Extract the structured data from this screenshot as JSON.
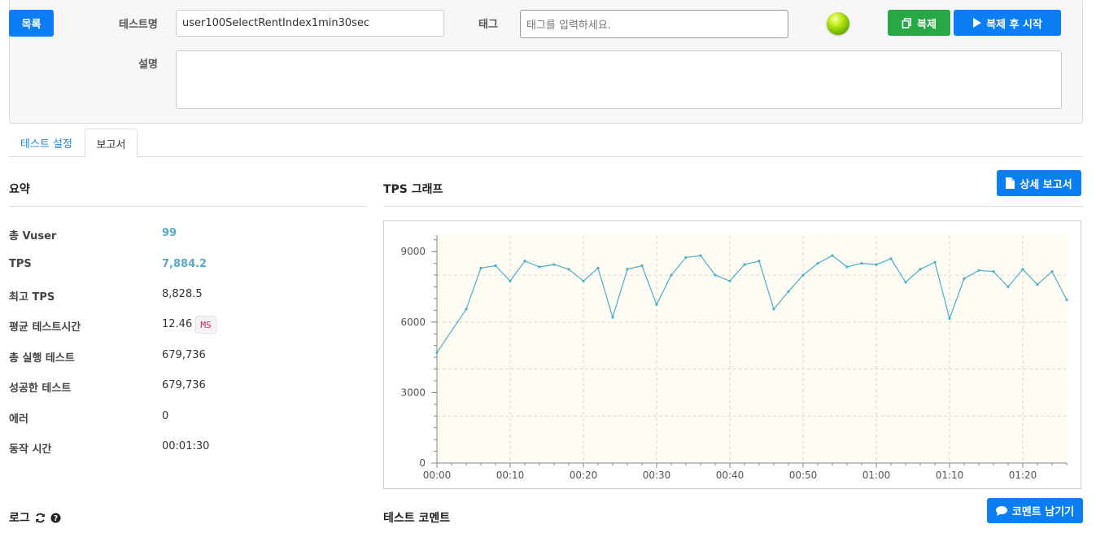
{
  "header": {
    "list_button": "목록",
    "test_name_label": "테스트명",
    "test_name_value": "user100SelectRentIndex1min30sec",
    "tag_label": "태그",
    "tag_placeholder": "태그를 입력하세요.",
    "description_label": "설명",
    "description_value": "",
    "copy_button": "복제",
    "copy_start_button": "복제 후 시작",
    "status_color": "#8ccf00"
  },
  "tabs": [
    {
      "label": "테스트 설정",
      "active": false
    },
    {
      "label": "보고서",
      "active": true
    }
  ],
  "summary": {
    "title": "요약",
    "rows": [
      {
        "label": "총 Vuser",
        "value": "99",
        "accent": true
      },
      {
        "label": "TPS",
        "value": "7,884.2",
        "accent": true
      },
      {
        "label": "최고 TPS",
        "value": "8,828.5"
      },
      {
        "label": "평균 테스트시간",
        "value": "12.46",
        "unit": "MS"
      },
      {
        "label": "총 실행 테스트",
        "value": "679,736"
      },
      {
        "label": "성공한 테스트",
        "value": "679,736"
      },
      {
        "label": "에러",
        "value": "0"
      },
      {
        "label": "동작 시간",
        "value": "00:01:30"
      }
    ]
  },
  "graph_section": {
    "title": "TPS 그래프",
    "detail_button": "상세 보고서",
    "line_color": "#4aafc9",
    "plot_bg": "#fffcf4"
  },
  "log_section": {
    "title": "로그"
  },
  "comment_section": {
    "title": "테스트 코멘트",
    "button": "코멘트 남기기"
  },
  "chart_data": {
    "type": "line",
    "x_unit": "seconds",
    "x_tick_labels": [
      "00:00",
      "00:10",
      "00:20",
      "00:30",
      "00:40",
      "00:50",
      "01:00",
      "01:10",
      "01:20"
    ],
    "y_tick_labels": [
      "0",
      "3000",
      "6000",
      "9000"
    ],
    "xlim": [
      0,
      86
    ],
    "ylim": [
      0,
      9700
    ],
    "grid": true,
    "series": [
      {
        "x": [
          0,
          4,
          6,
          8,
          10,
          12,
          14,
          16,
          18,
          20,
          22,
          24,
          26,
          28,
          30,
          32,
          34,
          36,
          38,
          40,
          42,
          44,
          46,
          48,
          50,
          52,
          54,
          56,
          58,
          60,
          62,
          64,
          66,
          68,
          70,
          72,
          74,
          76,
          78,
          80,
          82,
          84,
          86
        ],
        "values": [
          4700,
          6550,
          8300,
          8400,
          7750,
          8600,
          8350,
          8450,
          8250,
          7750,
          8300,
          6200,
          8250,
          8400,
          6750,
          8000,
          8750,
          8830,
          8000,
          7750,
          8450,
          8600,
          6550,
          7300,
          8000,
          8500,
          8830,
          8350,
          8500,
          8450,
          8700,
          7700,
          8250,
          8550,
          6150,
          7850,
          8200,
          8150,
          7500,
          8250,
          7600,
          8150,
          6950
        ]
      }
    ]
  }
}
